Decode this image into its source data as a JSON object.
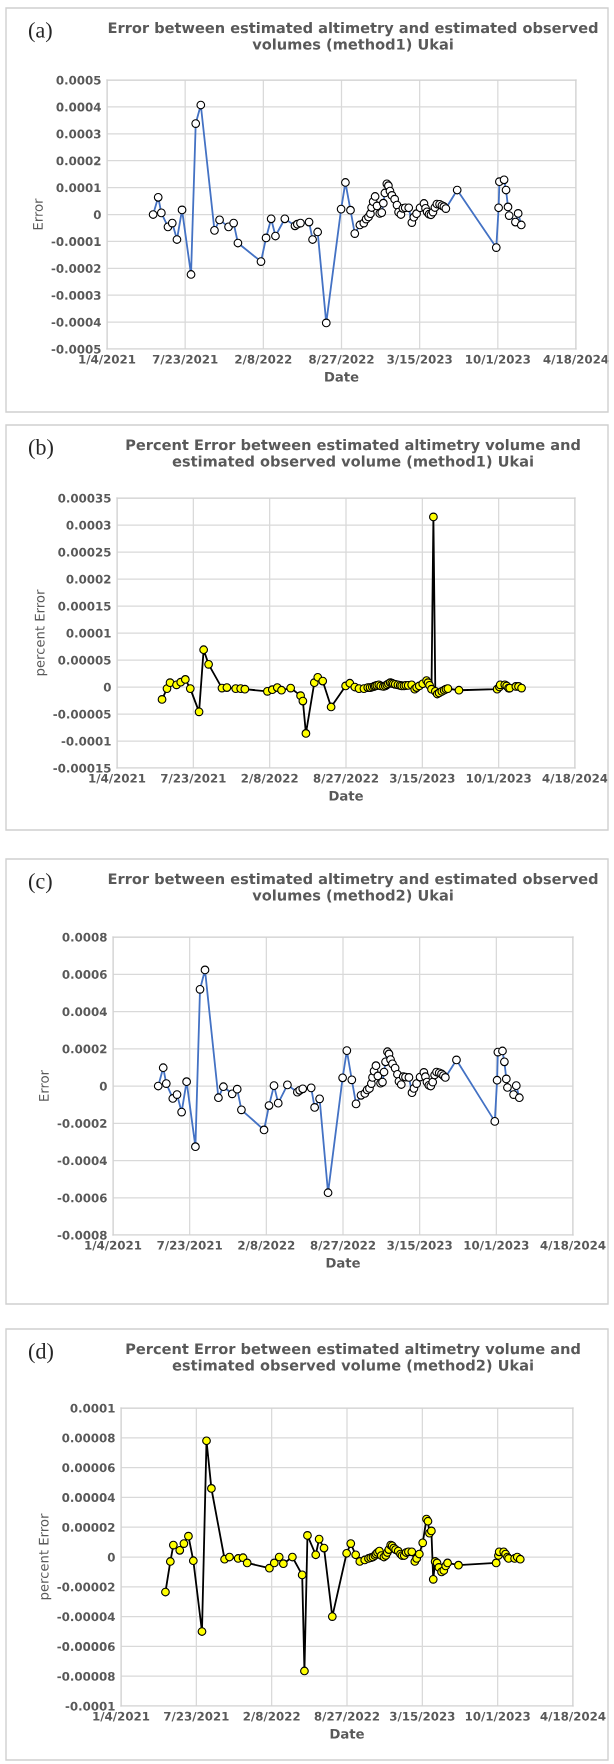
{
  "chart_data": [
    {
      "type": "line",
      "title": "Error between estimated altimetry and estimated observed volumes (method1) Ukai",
      "xlabel": "Date",
      "ylabel": "Error",
      "annotations": [
        "(a)"
      ],
      "grid": true,
      "marker": "circle",
      "line_style": "solid",
      "xlim": [
        "2021-01-04",
        "2024-04-18"
      ],
      "xticks": [
        {
          "value": "2021-01-04",
          "label": "1/4/2021"
        },
        {
          "value": "2021-07-23",
          "label": "7/23/2021"
        },
        {
          "value": "2022-02-08",
          "label": "2/8/2022"
        },
        {
          "value": "2022-08-27",
          "label": "8/27/2022"
        },
        {
          "value": "2023-03-15",
          "label": "3/15/2023"
        },
        {
          "value": "2023-10-01",
          "label": "10/1/2023"
        },
        {
          "value": "2024-04-18",
          "label": "4/18/2024"
        }
      ],
      "ylim": [
        -0.0005,
        0.0005
      ],
      "yticks": [
        -0.0005,
        -0.0004,
        -0.0003,
        -0.0002,
        -0.0001,
        0,
        0.0001,
        0.0002,
        0.0003,
        0.0004,
        0.0005
      ],
      "x": [
        "2021-05-02",
        "2021-05-15",
        "2021-05-23",
        "2021-06-09",
        "2021-06-20",
        "2021-07-02",
        "2021-07-15",
        "2021-08-07",
        "2021-08-19",
        "2021-09-01",
        "2021-10-06",
        "2021-10-19",
        "2021-11-11",
        "2021-11-24",
        "2021-12-05",
        "2022-02-02",
        "2022-02-15",
        "2022-02-28",
        "2022-03-11",
        "2022-04-04",
        "2022-04-30",
        "2022-05-06",
        "2022-05-14",
        "2022-06-05",
        "2022-06-14",
        "2022-06-27",
        "2022-07-19",
        "2022-08-26",
        "2022-09-06",
        "2022-09-19",
        "2022-09-30",
        "2022-10-13",
        "2022-10-23",
        "2022-10-29",
        "2022-11-04",
        "2022-11-09",
        "2022-11-12",
        "2022-11-16",
        "2022-11-21",
        "2022-11-26",
        "2022-12-03",
        "2022-12-08",
        "2022-12-12",
        "2022-12-16",
        "2022-12-21",
        "2022-12-25",
        "2022-12-29",
        "2023-01-03",
        "2023-01-10",
        "2023-01-16",
        "2023-01-20",
        "2023-01-26",
        "2023-01-31",
        "2023-02-06",
        "2023-02-15",
        "2023-02-23",
        "2023-02-28",
        "2023-03-07",
        "2023-03-16",
        "2023-03-26",
        "2023-03-30",
        "2023-04-03",
        "2023-04-08",
        "2023-04-13",
        "2023-04-18",
        "2023-04-23",
        "2023-04-28",
        "2023-05-05",
        "2023-05-11",
        "2023-05-16",
        "2023-05-21",
        "2023-06-19",
        "2023-09-27",
        "2023-10-03",
        "2023-10-05",
        "2023-10-17",
        "2023-10-22",
        "2023-10-27",
        "2023-10-30",
        "2023-11-15",
        "2023-11-22",
        "2023-11-30"
      ],
      "series": [
        {
          "color": "#4472c4",
          "values": [
            0,
            6.4e-05,
            6e-06,
            -4.6e-05,
            -3.2e-05,
            -9.3e-05,
            1.7e-05,
            -0.000223,
            0.000338,
            0.000407,
            -5.9e-05,
            -2e-05,
            -4.6e-05,
            -3.2e-05,
            -0.000106,
            -0.000175,
            -8.7e-05,
            -1.6e-05,
            -8e-05,
            -1.6e-05,
            -4.2e-05,
            -3.6e-05,
            -3.2e-05,
            -2.8e-05,
            -9.3e-05,
            -6.5e-05,
            -0.000403,
            2e-05,
            0.000119,
            1.6e-05,
            -7.1e-05,
            -3.9e-05,
            -3.2e-05,
            -1.7e-05,
            -9e-06,
            3e-06,
            2.6e-05,
            4.8e-05,
            6.7e-05,
            3.2e-05,
            4e-06,
            7e-06,
            4.2e-05,
            8e-05,
            0.000114,
            0.000107,
            8.7e-05,
            7.1e-05,
            5.7e-05,
            3.5e-05,
            9e-06,
            0,
            2.3e-05,
            2.5e-05,
            2.5e-05,
            -3e-05,
            -1e-05,
            3e-06,
            2.5e-05,
            4.1e-05,
            2.3e-05,
            1e-05,
            1e-06,
            -1e-06,
            9e-06,
            2.6e-05,
            3.9e-05,
            3.8e-05,
            3.3e-05,
            2.9e-05,
            2.2e-05,
            9.1e-05,
            -0.000123,
            2.5e-05,
            0.000122,
            0.000129,
            9.1e-05,
            2.8e-05,
            -4e-06,
            -2.8e-05,
            4e-06,
            -3.9e-05
          ]
        }
      ]
    },
    {
      "type": "line",
      "title": "Percent Error between estimated altimetry volume and estimated observed volume (method1) Ukai",
      "xlabel": "Date",
      "ylabel": "percent Error",
      "annotations": [
        "(b)"
      ],
      "grid": true,
      "marker": "circle",
      "line_style": "solid",
      "xlim": [
        "2021-01-04",
        "2024-04-18"
      ],
      "xticks": [
        {
          "value": "2021-01-04",
          "label": "1/4/2021"
        },
        {
          "value": "2021-07-23",
          "label": "7/23/2021"
        },
        {
          "value": "2022-02-08",
          "label": "2/8/2022"
        },
        {
          "value": "2022-08-27",
          "label": "8/27/2022"
        },
        {
          "value": "2023-03-15",
          "label": "3/15/2023"
        },
        {
          "value": "2023-10-01",
          "label": "10/1/2023"
        },
        {
          "value": "2024-04-18",
          "label": "4/18/2024"
        }
      ],
      "ylim": [
        -0.00015,
        0.00035
      ],
      "yticks": [
        {
          "value": -0.00015,
          "label": "-0.00015"
        },
        {
          "value": -0.0001,
          "label": "-0.0001"
        },
        {
          "value": -5e-05,
          "label": "-0.00005"
        },
        {
          "value": 0,
          "label": "0"
        },
        {
          "value": 5e-05,
          "label": "0.00005"
        },
        {
          "value": 0.0001,
          "label": "0.0001"
        },
        {
          "value": 0.00015,
          "label": "0.00015"
        },
        {
          "value": 0.0002,
          "label": "0.0002"
        },
        {
          "value": 0.00025,
          "label": "0.00025"
        },
        {
          "value": 0.0003,
          "label": "0.0003"
        },
        {
          "value": 0.00035,
          "label": "0.00035"
        }
      ],
      "x": [
        "2021-05-02",
        "2021-05-15",
        "2021-05-23",
        "2021-06-09",
        "2021-06-20",
        "2021-07-02",
        "2021-07-15",
        "2021-08-07",
        "2021-08-19",
        "2021-09-01",
        "2021-10-06",
        "2021-10-19",
        "2021-11-11",
        "2021-11-24",
        "2021-12-05",
        "2022-02-02",
        "2022-02-15",
        "2022-02-28",
        "2022-03-11",
        "2022-04-04",
        "2022-04-30",
        "2022-05-06",
        "2022-05-14",
        "2022-06-05",
        "2022-06-14",
        "2022-06-27",
        "2022-07-19",
        "2022-08-26",
        "2022-09-06",
        "2022-09-19",
        "2022-09-30",
        "2022-10-13",
        "2022-10-23",
        "2022-10-29",
        "2022-11-04",
        "2022-11-09",
        "2022-11-12",
        "2022-11-16",
        "2022-11-21",
        "2022-11-26",
        "2022-12-03",
        "2022-12-08",
        "2022-12-12",
        "2022-12-16",
        "2022-12-21",
        "2022-12-25",
        "2022-12-29",
        "2023-01-03",
        "2023-01-10",
        "2023-01-16",
        "2023-01-20",
        "2023-01-26",
        "2023-01-31",
        "2023-02-06",
        "2023-02-15",
        "2023-02-23",
        "2023-02-28",
        "2023-03-07",
        "2023-03-16",
        "2023-03-26",
        "2023-03-30",
        "2023-04-03",
        "2023-04-08",
        "2023-04-13",
        "2023-04-18",
        "2023-04-23",
        "2023-04-28",
        "2023-05-05",
        "2023-05-11",
        "2023-05-16",
        "2023-05-21",
        "2023-06-19",
        "2023-09-27",
        "2023-10-03",
        "2023-10-05",
        "2023-10-17",
        "2023-10-22",
        "2023-10-27",
        "2023-10-30",
        "2023-11-15",
        "2023-11-22",
        "2023-11-30"
      ],
      "series": [
        {
          "color": "#000000",
          "values": [
            -2.3e-05,
            -3e-06,
            8e-06,
            4e-06,
            9e-06,
            1.4e-05,
            -3e-06,
            -4.6e-05,
            6.9e-05,
            4.2e-05,
            -2e-06,
            -1e-06,
            -3e-06,
            -3e-06,
            -4e-06,
            -8e-06,
            -5e-06,
            -1e-06,
            -6e-06,
            -2e-06,
            -1.6e-05,
            -2.6e-05,
            -8.6e-05,
            8e-06,
            1.8e-05,
            1.1e-05,
            -3.7e-05,
            2e-06,
            7e-06,
            0,
            -3e-06,
            -3e-06,
            -1e-06,
            -1e-06,
            0,
            1e-06,
            2e-06,
            3e-06,
            4e-06,
            2e-06,
            1e-06,
            2e-06,
            4e-06,
            6e-06,
            8e-06,
            7e-06,
            6e-06,
            5e-06,
            4e-06,
            3e-06,
            2e-06,
            2e-06,
            3e-06,
            3e-06,
            4e-06,
            -4e-06,
            -1e-06,
            2e-06,
            6e-06,
            1.2e-05,
            8e-06,
            3e-06,
            -4e-06,
            0.000315,
            -8e-06,
            -1.3e-05,
            -1.1e-05,
            -8e-06,
            -6e-06,
            -4e-06,
            -3e-06,
            -6e-06,
            -4e-06,
            0,
            4e-06,
            4e-06,
            2e-06,
            -2e-06,
            -2e-06,
            1e-06,
            1e-06,
            -2e-06
          ]
        }
      ]
    },
    {
      "type": "line",
      "title": "Error between estimated altimetry and estimated observed volumes (method2) Ukai",
      "xlabel": "Date",
      "ylabel": "Error",
      "annotations": [
        "(c)"
      ],
      "grid": true,
      "marker": "circle",
      "line_style": "solid",
      "xlim": [
        "2021-01-04",
        "2024-04-18"
      ],
      "xticks": [
        {
          "value": "2021-01-04",
          "label": "1/4/2021"
        },
        {
          "value": "2021-07-23",
          "label": "7/23/2021"
        },
        {
          "value": "2022-02-08",
          "label": "2/8/2022"
        },
        {
          "value": "2022-08-27",
          "label": "8/27/2022"
        },
        {
          "value": "2023-03-15",
          "label": "3/15/2023"
        },
        {
          "value": "2023-10-01",
          "label": "10/1/2023"
        },
        {
          "value": "2024-04-18",
          "label": "4/18/2024"
        }
      ],
      "ylim": [
        -0.0008,
        0.0008
      ],
      "yticks": [
        -0.0008,
        -0.0006,
        -0.0004,
        -0.0002,
        0,
        0.0002,
        0.0004,
        0.0006,
        0.0008
      ],
      "x": [
        "2021-05-02",
        "2021-05-15",
        "2021-05-23",
        "2021-06-09",
        "2021-06-20",
        "2021-07-02",
        "2021-07-15",
        "2021-08-07",
        "2021-08-19",
        "2021-09-01",
        "2021-10-06",
        "2021-10-19",
        "2021-11-11",
        "2021-11-24",
        "2021-12-05",
        "2022-02-02",
        "2022-02-15",
        "2022-02-28",
        "2022-03-11",
        "2022-04-04",
        "2022-04-30",
        "2022-05-06",
        "2022-05-14",
        "2022-06-05",
        "2022-06-14",
        "2022-06-27",
        "2022-07-19",
        "2022-08-26",
        "2022-09-06",
        "2022-09-19",
        "2022-09-30",
        "2022-10-13",
        "2022-10-23",
        "2022-10-29",
        "2022-11-04",
        "2022-11-09",
        "2022-11-12",
        "2022-11-16",
        "2022-11-21",
        "2022-11-26",
        "2022-12-03",
        "2022-12-08",
        "2022-12-12",
        "2022-12-16",
        "2022-12-21",
        "2022-12-25",
        "2022-12-29",
        "2023-01-03",
        "2023-01-10",
        "2023-01-16",
        "2023-01-20",
        "2023-01-26",
        "2023-01-31",
        "2023-02-06",
        "2023-02-15",
        "2023-02-23",
        "2023-02-28",
        "2023-03-07",
        "2023-03-16",
        "2023-03-26",
        "2023-03-30",
        "2023-04-03",
        "2023-04-08",
        "2023-04-13",
        "2023-04-18",
        "2023-04-23",
        "2023-04-28",
        "2023-05-05",
        "2023-05-11",
        "2023-05-16",
        "2023-05-21",
        "2023-06-19",
        "2023-09-27",
        "2023-10-03",
        "2023-10-05",
        "2023-10-17",
        "2023-10-22",
        "2023-10-27",
        "2023-10-30",
        "2023-11-15",
        "2023-11-22",
        "2023-11-30"
      ],
      "series": [
        {
          "color": "#4472c4",
          "values": [
            0,
            9.8e-05,
            1.3e-05,
            -6.7e-05,
            -4.6e-05,
            -0.00014,
            2.3e-05,
            -0.000326,
            0.000519,
            0.000623,
            -6.3e-05,
            -4e-06,
            -4.2e-05,
            -1.7e-05,
            -0.000128,
            -0.000236,
            -0.000105,
            2e-06,
            -9.2e-05,
            6e-06,
            -3.3e-05,
            -2.3e-05,
            -1.5e-05,
            -1e-05,
            -0.000115,
            -6.9e-05,
            -0.000573,
            4.4e-05,
            0.00019,
            3.3e-05,
            -9.6e-05,
            -5e-05,
            -4e-05,
            -2.1e-05,
            -1.3e-05,
            1.3e-05,
            4.6e-05,
            8e-05,
            0.000109,
            5.4e-05,
            1.5e-05,
            2.1e-05,
            7.5e-05,
            0.00013,
            0.000184,
            0.000172,
            0.000142,
            0.000119,
            9.6e-05,
            6.3e-05,
            2.5e-05,
            8e-06,
            5e-05,
            4.8e-05,
            4.6e-05,
            -3.6e-05,
            -1.3e-05,
            1.3e-05,
            4.8e-05,
            7.3e-05,
            5e-05,
            2.1e-05,
            4e-06,
            0,
            2.1e-05,
            5.9e-05,
            7.5e-05,
            7.1e-05,
            6.5e-05,
            5.6e-05,
            4.6e-05,
            0.00014,
            -0.00019,
            3.1e-05,
            0.000182,
            0.000188,
            0.00013,
            3.8e-05,
            -8e-06,
            -4.6e-05,
            2e-06,
            -6.3e-05
          ]
        }
      ]
    },
    {
      "type": "line",
      "title": "Percent Error between estimated altimetry volume and estimated observed volume (method2) Ukai",
      "xlabel": "Date",
      "ylabel": "percent Error",
      "annotations": [
        "(d)"
      ],
      "grid": true,
      "marker": "circle",
      "line_style": "solid",
      "xlim": [
        "2021-01-04",
        "2024-04-18"
      ],
      "xticks": [
        {
          "value": "2021-01-04",
          "label": "1/4/2021"
        },
        {
          "value": "2021-07-23",
          "label": "7/23/2021"
        },
        {
          "value": "2022-02-08",
          "label": "2/8/2022"
        },
        {
          "value": "2022-08-27",
          "label": "8/27/2022"
        },
        {
          "value": "2023-03-15",
          "label": "3/15/2023"
        },
        {
          "value": "2023-10-01",
          "label": "10/1/2023"
        },
        {
          "value": "2024-04-18",
          "label": "4/18/2024"
        }
      ],
      "ylim": [
        -0.0001,
        0.0001
      ],
      "yticks": [
        {
          "value": -0.0001,
          "label": "-0.0001"
        },
        {
          "value": -8e-05,
          "label": "-0.00008"
        },
        {
          "value": -6e-05,
          "label": "-0.00006"
        },
        {
          "value": -4e-05,
          "label": "-0.00004"
        },
        {
          "value": -2e-05,
          "label": "-0.00002"
        },
        {
          "value": 0,
          "label": "0"
        },
        {
          "value": 2e-05,
          "label": "0.00002"
        },
        {
          "value": 4e-05,
          "label": "0.00004"
        },
        {
          "value": 6e-05,
          "label": "0.00006"
        },
        {
          "value": 8e-05,
          "label": "0.00008"
        },
        {
          "value": 0.0001,
          "label": "0.0001"
        }
      ],
      "x": [
        "2021-05-02",
        "2021-05-15",
        "2021-05-23",
        "2021-06-09",
        "2021-06-20",
        "2021-07-02",
        "2021-07-15",
        "2021-08-07",
        "2021-08-19",
        "2021-09-01",
        "2021-10-06",
        "2021-10-19",
        "2021-11-11",
        "2021-11-24",
        "2021-12-05",
        "2022-02-02",
        "2022-02-15",
        "2022-02-28",
        "2022-03-11",
        "2022-04-04",
        "2022-04-30",
        "2022-05-06",
        "2022-05-14",
        "2022-06-05",
        "2022-06-14",
        "2022-06-27",
        "2022-07-19",
        "2022-08-26",
        "2022-09-06",
        "2022-09-19",
        "2022-09-30",
        "2022-10-13",
        "2022-10-23",
        "2022-10-29",
        "2022-11-04",
        "2022-11-09",
        "2022-11-12",
        "2022-11-16",
        "2022-11-21",
        "2022-11-26",
        "2022-12-03",
        "2022-12-08",
        "2022-12-12",
        "2022-12-16",
        "2022-12-21",
        "2022-12-25",
        "2022-12-29",
        "2023-01-03",
        "2023-01-10",
        "2023-01-16",
        "2023-01-20",
        "2023-01-26",
        "2023-01-31",
        "2023-02-06",
        "2023-02-15",
        "2023-02-23",
        "2023-02-28",
        "2023-03-07",
        "2023-03-16",
        "2023-03-26",
        "2023-03-30",
        "2023-04-03",
        "2023-04-08",
        "2023-04-13",
        "2023-04-18",
        "2023-04-23",
        "2023-04-28",
        "2023-05-05",
        "2023-05-11",
        "2023-05-16",
        "2023-05-21",
        "2023-06-19",
        "2023-09-27",
        "2023-10-03",
        "2023-10-05",
        "2023-10-17",
        "2023-10-22",
        "2023-10-27",
        "2023-10-30",
        "2023-11-15",
        "2023-11-22",
        "2023-11-30"
      ],
      "series": [
        {
          "color": "#000000",
          "values": [
            -2.35e-05,
            -3e-06,
            8e-06,
            4.5e-06,
            9e-06,
            1.4e-05,
            -2.5e-06,
            -5e-05,
            7.8e-05,
            4.6e-05,
            -1.5e-06,
            0,
            -1e-06,
            -5e-07,
            -4e-06,
            -7.5e-06,
            -4e-06,
            0,
            -4.5e-06,
            0,
            -1.2e-05,
            -7.65e-05,
            1.45e-05,
            1.5e-06,
            1.2e-05,
            6e-06,
            -4e-05,
            2.5e-06,
            9e-06,
            1.5e-06,
            -3e-06,
            -2e-06,
            -1e-06,
            -5e-07,
            0,
            1e-06,
            2e-06,
            3e-06,
            4e-06,
            1e-06,
            0,
            1e-06,
            3e-06,
            5e-06,
            8e-06,
            7.5e-06,
            6e-06,
            5e-06,
            4e-06,
            2e-06,
            1e-06,
            1e-06,
            3e-06,
            3.5e-06,
            3.5e-06,
            -3e-06,
            -1e-06,
            2e-06,
            9.5e-06,
            2.55e-05,
            2.4e-05,
            1.6e-05,
            1.75e-05,
            -1.5e-05,
            -3e-06,
            -4e-06,
            -7e-06,
            -1e-05,
            -9e-06,
            -6e-06,
            -4e-06,
            -5.5e-06,
            -4e-06,
            1e-06,
            3.5e-06,
            3.5e-06,
            2e-06,
            0,
            -1e-06,
            -1e-06,
            0,
            -1.5e-06
          ]
        }
      ]
    }
  ]
}
